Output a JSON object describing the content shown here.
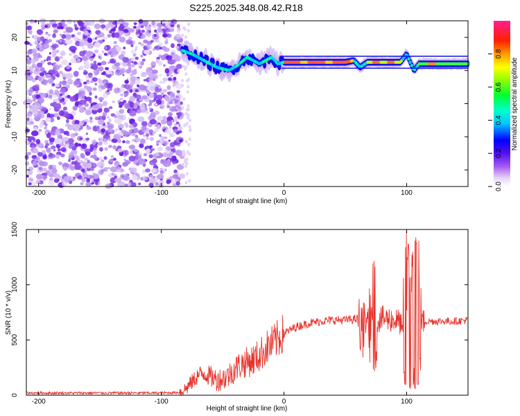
{
  "title": "S225.2025.348.08.42.R18",
  "chart_data": [
    {
      "type": "heatmap",
      "title": "S225.2025.348.08.42.R18",
      "xlabel": "Height of straight line (km)",
      "ylabel": "Frequency (Hz)",
      "xlim": [
        -210,
        150
      ],
      "ylim": [
        -25,
        25
      ],
      "x_ticks": [
        -200,
        -100,
        0,
        100
      ],
      "y_ticks": [
        -20,
        -10,
        0,
        10,
        20
      ],
      "noise_region_x": [
        -210,
        -83
      ],
      "signal_band": [
        {
          "x": -83,
          "freq": 16
        },
        {
          "x": -75,
          "freq": 15
        },
        {
          "x": -65,
          "freq": 13
        },
        {
          "x": -55,
          "freq": 11
        },
        {
          "x": -45,
          "freq": 10
        },
        {
          "x": -38,
          "freq": 11.5
        },
        {
          "x": -30,
          "freq": 14
        },
        {
          "x": -20,
          "freq": 12
        },
        {
          "x": -10,
          "freq": 14
        },
        {
          "x": -5,
          "freq": 12
        },
        {
          "x": 0,
          "freq": 12.5
        },
        {
          "x": 50,
          "freq": 12.5
        },
        {
          "x": 57,
          "freq": 13
        },
        {
          "x": 62,
          "freq": 11
        },
        {
          "x": 68,
          "freq": 12.5
        },
        {
          "x": 95,
          "freq": 12.5
        },
        {
          "x": 100,
          "freq": 15
        },
        {
          "x": 106,
          "freq": 10
        },
        {
          "x": 110,
          "freq": 12
        },
        {
          "x": 150,
          "freq": 12
        }
      ],
      "colorbar": {
        "label": "Normalized spectral amplitude",
        "range": [
          0,
          1
        ],
        "ticks": [
          0.0,
          0.2,
          0.4,
          0.6,
          0.8
        ]
      }
    },
    {
      "type": "line",
      "xlabel": "Height of straight line (km)",
      "ylabel": "SNR (10 * v/v)",
      "xlim": [
        -210,
        150
      ],
      "ylim": [
        0,
        1500
      ],
      "x_ticks": [
        -200,
        -100,
        0,
        100
      ],
      "y_ticks": [
        0,
        500,
        1000,
        1500
      ],
      "series": [
        {
          "name": "SNR",
          "color": "#e8332b",
          "x": [
            -210,
            -150,
            -100,
            -85,
            -80,
            -75,
            -70,
            -65,
            -60,
            -55,
            -50,
            -45,
            -40,
            -35,
            -30,
            -25,
            -20,
            -15,
            -10,
            -5,
            0,
            5,
            10,
            20,
            30,
            40,
            50,
            60,
            63,
            65,
            67,
            70,
            75,
            80,
            85,
            90,
            95,
            98,
            100,
            102,
            104,
            106,
            108,
            110,
            112,
            115,
            120,
            130,
            140,
            150
          ],
          "values": [
            20,
            20,
            20,
            25,
            60,
            120,
            180,
            200,
            170,
            140,
            150,
            180,
            240,
            280,
            300,
            320,
            360,
            420,
            460,
            510,
            560,
            590,
            620,
            650,
            670,
            680,
            680,
            690,
            700,
            640,
            660,
            680,
            680,
            690,
            690,
            680,
            660,
            420,
            700,
            350,
            850,
            200,
            900,
            400,
            660,
            670,
            670,
            670,
            670,
            680
          ]
        }
      ],
      "spikes": [
        {
          "x": 62,
          "min": 480,
          "max": 930
        },
        {
          "x": 65,
          "min": 430,
          "max": 880
        },
        {
          "x": 70,
          "min": 420,
          "max": 980
        },
        {
          "x": 73,
          "min": 300,
          "max": 1280
        },
        {
          "x": 75,
          "min": 350,
          "max": 1250
        },
        {
          "x": 98,
          "min": 200,
          "max": 1200
        },
        {
          "x": 99,
          "min": 100,
          "max": 1500
        },
        {
          "x": 101,
          "min": 150,
          "max": 1400
        },
        {
          "x": 103,
          "min": 80,
          "max": 1100
        },
        {
          "x": 105,
          "min": 100,
          "max": 1350
        },
        {
          "x": 107,
          "min": 60,
          "max": 1450
        },
        {
          "x": 109,
          "min": 120,
          "max": 1500
        },
        {
          "x": 111,
          "min": 300,
          "max": 1100
        }
      ]
    }
  ]
}
